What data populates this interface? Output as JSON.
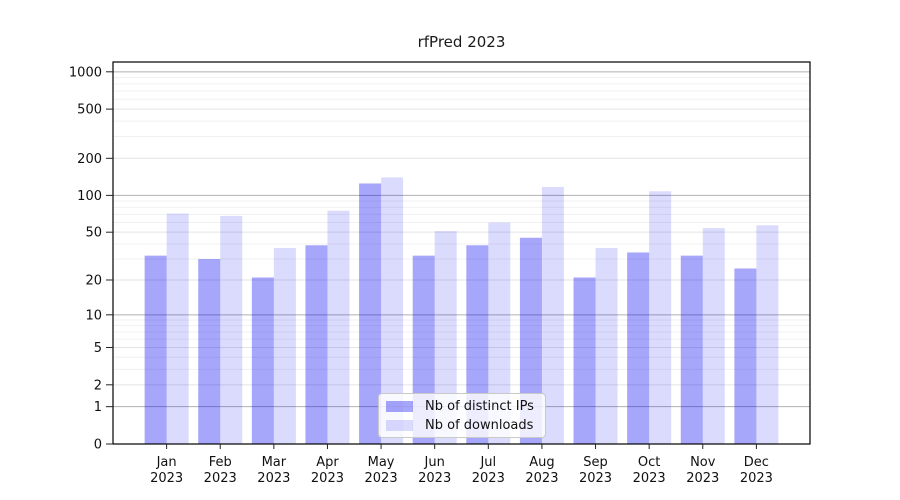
{
  "figure": {
    "title": "rfPred 2023"
  },
  "chart_data": {
    "type": "bar",
    "title": "rfPred 2023",
    "categories": [
      "Jan",
      "Feb",
      "Mar",
      "Apr",
      "May",
      "Jun",
      "Jul",
      "Aug",
      "Sep",
      "Oct",
      "Nov",
      "Dec"
    ],
    "year_label": "2023",
    "series": [
      {
        "name": "Nb of distinct IPs",
        "color": "#0000f0",
        "opacity": 0.35,
        "values": [
          32,
          30,
          21,
          39,
          125,
          32,
          39,
          45,
          21,
          34,
          32,
          25
        ]
      },
      {
        "name": "Nb of downloads",
        "color": "#0000f0",
        "opacity": 0.14,
        "values": [
          71,
          68,
          37,
          75,
          140,
          51,
          60,
          117,
          37,
          108,
          54,
          57
        ]
      }
    ],
    "yscale": "log1p",
    "yticks": [
      0,
      1,
      2,
      5,
      10,
      20,
      50,
      100,
      200,
      500,
      1000
    ],
    "decade_ticks": [
      1,
      10,
      100,
      1000
    ],
    "minor_multiples": [
      3,
      4,
      6,
      7,
      8,
      9
    ],
    "ylim": [
      0,
      1200
    ],
    "grid": true,
    "legend_position": "lower center",
    "xlabel": "",
    "ylabel": "",
    "colors": {
      "grid_decade": "#b0b0b0",
      "grid_labeled": "#e3e3e3",
      "grid_minor": "#f0f0f0",
      "axis_spine": "#000000",
      "tick": "#222222",
      "tick_label": "#111111"
    }
  }
}
